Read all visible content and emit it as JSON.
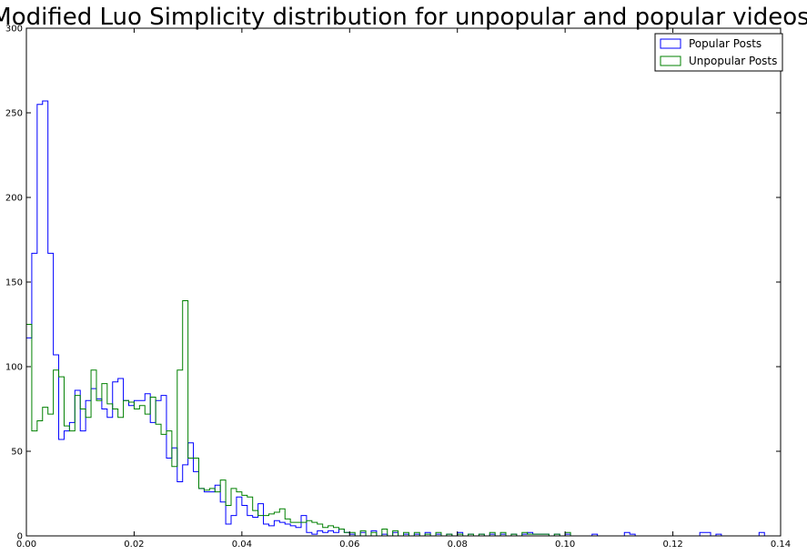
{
  "chart_data": {
    "type": "histogram",
    "title": "Modified Luo Simplicity distribution for unpopular and popular videos",
    "xlabel": "",
    "ylabel": "",
    "xlim": [
      0.0,
      0.14
    ],
    "ylim": [
      0,
      300
    ],
    "xticks": [
      0.0,
      0.02,
      0.04,
      0.06,
      0.08,
      0.1,
      0.12,
      0.14
    ],
    "xtick_labels": [
      "0.00",
      "0.02",
      "0.04",
      "0.06",
      "0.08",
      "0.10",
      "0.12",
      "0.14"
    ],
    "yticks": [
      0,
      50,
      100,
      150,
      200,
      250,
      300
    ],
    "ytick_labels": [
      "0",
      "50",
      "100",
      "150",
      "200",
      "250",
      "300"
    ],
    "grid": false,
    "legend_position": "top-right",
    "series": [
      {
        "name": "Popular Posts",
        "color": "#0000ff",
        "x": [
          0.0,
          0.001,
          0.002,
          0.003,
          0.004,
          0.005,
          0.006,
          0.007,
          0.008,
          0.009,
          0.01,
          0.011,
          0.012,
          0.013,
          0.014,
          0.015,
          0.016,
          0.017,
          0.018,
          0.019,
          0.02,
          0.021,
          0.022,
          0.023,
          0.024,
          0.025,
          0.026,
          0.027,
          0.028,
          0.029,
          0.03,
          0.031,
          0.032,
          0.033,
          0.034,
          0.035,
          0.036,
          0.037,
          0.038,
          0.039,
          0.04,
          0.041,
          0.042,
          0.043,
          0.044,
          0.045,
          0.046,
          0.047,
          0.048,
          0.049,
          0.05,
          0.051,
          0.052,
          0.053,
          0.054,
          0.055,
          0.056,
          0.057,
          0.058,
          0.059,
          0.06,
          0.062,
          0.064,
          0.066,
          0.068,
          0.07,
          0.072,
          0.074,
          0.076,
          0.078,
          0.08,
          0.082,
          0.084,
          0.086,
          0.088,
          0.09,
          0.092,
          0.093,
          0.094,
          0.095,
          0.096,
          0.098,
          0.1,
          0.105,
          0.111,
          0.112,
          0.113,
          0.12,
          0.125,
          0.126,
          0.128,
          0.13,
          0.134,
          0.135,
          0.136
        ],
        "values": [
          117,
          167,
          255,
          257,
          167,
          107,
          57,
          62,
          67,
          86,
          62,
          80,
          87,
          81,
          75,
          70,
          91,
          93,
          80,
          77,
          80,
          80,
          84,
          67,
          80,
          83,
          46,
          52,
          32,
          42,
          55,
          38,
          28,
          26,
          26,
          30,
          20,
          7,
          12,
          23,
          18,
          12,
          11,
          19,
          7,
          6,
          9,
          8,
          7,
          6,
          5,
          12,
          2,
          1,
          3,
          2,
          3,
          2,
          4,
          2,
          1,
          2,
          3,
          1,
          2,
          1,
          1,
          2,
          1,
          1,
          2,
          1,
          1,
          1,
          1,
          1,
          1,
          2,
          1,
          1,
          1,
          1,
          1,
          1,
          2,
          1,
          0,
          0,
          2,
          2,
          1,
          0,
          0,
          0,
          2
        ]
      },
      {
        "name": "Unpopular Posts",
        "color": "#008000",
        "x": [
          0.0,
          0.001,
          0.002,
          0.003,
          0.004,
          0.005,
          0.006,
          0.007,
          0.008,
          0.009,
          0.01,
          0.011,
          0.012,
          0.013,
          0.014,
          0.015,
          0.016,
          0.017,
          0.018,
          0.019,
          0.02,
          0.021,
          0.022,
          0.023,
          0.024,
          0.025,
          0.026,
          0.027,
          0.028,
          0.029,
          0.03,
          0.031,
          0.032,
          0.033,
          0.034,
          0.035,
          0.036,
          0.037,
          0.038,
          0.039,
          0.04,
          0.041,
          0.042,
          0.043,
          0.044,
          0.045,
          0.046,
          0.047,
          0.048,
          0.049,
          0.05,
          0.051,
          0.052,
          0.053,
          0.054,
          0.055,
          0.056,
          0.057,
          0.058,
          0.059,
          0.06,
          0.062,
          0.064,
          0.066,
          0.068,
          0.07,
          0.072,
          0.074,
          0.076,
          0.078,
          0.08,
          0.082,
          0.084,
          0.086,
          0.088,
          0.09,
          0.092,
          0.093,
          0.094,
          0.095,
          0.096,
          0.098,
          0.1,
          0.101
        ],
        "values": [
          125,
          62,
          68,
          76,
          72,
          98,
          94,
          65,
          62,
          83,
          75,
          70,
          98,
          80,
          90,
          78,
          75,
          70,
          80,
          79,
          75,
          77,
          72,
          82,
          66,
          60,
          62,
          41,
          98,
          139,
          46,
          46,
          28,
          27,
          28,
          26,
          33,
          18,
          28,
          26,
          24,
          23,
          15,
          12,
          12,
          13,
          14,
          16,
          10,
          8,
          8,
          8,
          9,
          8,
          7,
          5,
          6,
          5,
          4,
          2,
          2,
          3,
          2,
          4,
          3,
          2,
          2,
          1,
          2,
          1,
          1,
          1,
          1,
          2,
          2,
          1,
          2,
          1,
          1,
          1,
          1,
          1,
          2,
          0
        ]
      }
    ]
  }
}
